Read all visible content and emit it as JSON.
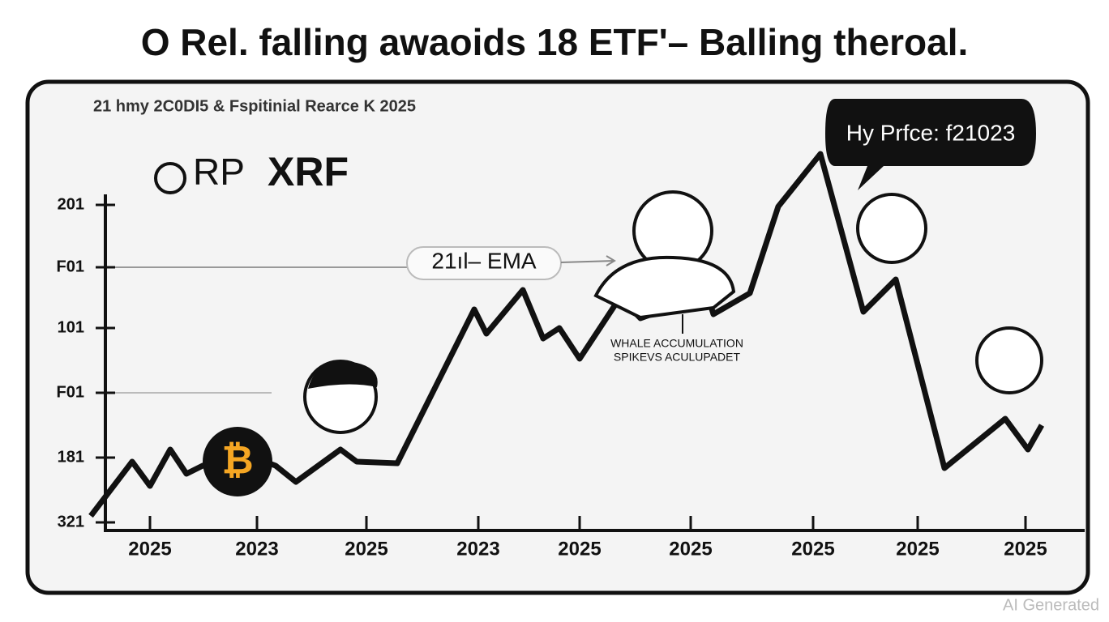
{
  "header": {
    "title": "O Rel. falling awaoids 18 EТF'– Balling theroal."
  },
  "panel": {
    "subtitle": "21 hmy 2C0DI5 & Fspitinial Rearce K 2025",
    "logo_light": "RP",
    "logo_bold": "XRF",
    "bitcoin_symbol": "₿",
    "ema_label": "21ıl– EMA",
    "callout": "Hy Prfce: f21023",
    "annotation": [
      "WHALE ACCUMULATION",
      "SPIKEVS ACULUPADET"
    ],
    "y_axis_labels": [
      "201",
      "F01",
      "101",
      "F01",
      "181",
      "321"
    ],
    "x_axis_labels": [
      "2025",
      "2023",
      "2025",
      "2023",
      "2025",
      "2025",
      "2025",
      "2025",
      "2025"
    ]
  },
  "footer": {
    "watermark": "AI Generated"
  }
}
